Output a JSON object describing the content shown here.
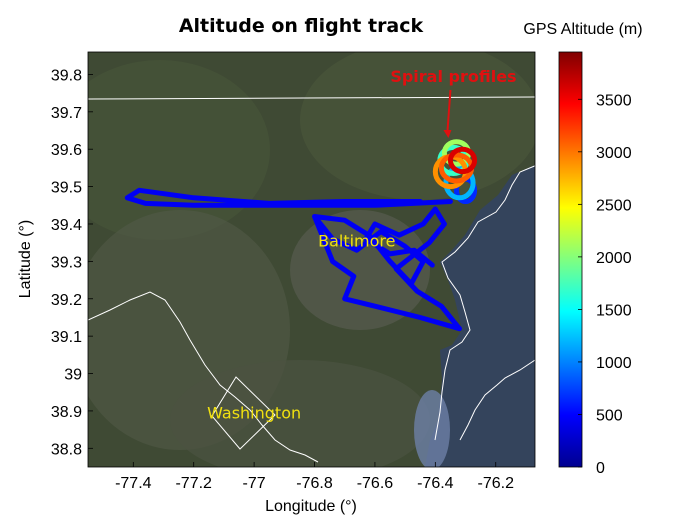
{
  "chart_data": {
    "type": "map-scatter",
    "title": "Altitude on flight track",
    "xlabel": "Longitude (°)",
    "ylabel": "Latitude (°)",
    "xlim": [
      -77.55,
      -76.07
    ],
    "ylim": [
      38.75,
      39.86
    ],
    "xticks": [
      -77.4,
      -77.2,
      -77,
      -76.8,
      -76.6,
      -76.4,
      -76.2
    ],
    "xtick_labels": [
      "-77.4",
      "-77.2",
      "-77",
      "-76.8",
      "-76.6",
      "-76.4",
      "-76.2"
    ],
    "yticks": [
      38.8,
      38.9,
      39,
      39.1,
      39.2,
      39.3,
      39.4,
      39.5,
      39.6,
      39.7,
      39.8
    ],
    "ytick_labels": [
      "38.8",
      "38.9",
      "39",
      "39.1",
      "39.2",
      "39.3",
      "39.4",
      "39.5",
      "39.6",
      "39.7",
      "39.8"
    ],
    "colorbar": {
      "title": "GPS Altitude (m)",
      "range": [
        0,
        3950
      ],
      "ticks": [
        0,
        500,
        1000,
        1500,
        2000,
        2500,
        3000,
        3500
      ],
      "tick_labels": [
        "0",
        "500",
        "1000",
        "1500",
        "2000",
        "2500",
        "3000",
        "3500"
      ],
      "colormap": "jet"
    },
    "annotations": [
      {
        "text": "Spiral profiles",
        "lon": -76.34,
        "lat": 39.78,
        "color": "#e01010",
        "arrow_to": {
          "lon": -76.36,
          "lat": 39.63
        }
      },
      {
        "text": "Baltimore",
        "lon": -76.66,
        "lat": 39.34,
        "color": "#f0e010"
      },
      {
        "text": "Washington",
        "lon": -77.0,
        "lat": 38.88,
        "color": "#f0e010"
      }
    ],
    "series": [
      {
        "altitude_m": 450,
        "points": [
          [
            -76.35,
            39.46
          ],
          [
            -76.6,
            39.45
          ],
          [
            -76.9,
            39.45
          ],
          [
            -77.2,
            39.45
          ],
          [
            -77.36,
            39.455
          ],
          [
            -77.42,
            39.47
          ],
          [
            -77.38,
            39.49
          ],
          [
            -77.2,
            39.47
          ],
          [
            -76.95,
            39.455
          ],
          [
            -76.7,
            39.46
          ],
          [
            -76.45,
            39.46
          ]
        ]
      },
      {
        "altitude_m": 450,
        "points": [
          [
            -76.8,
            39.42
          ],
          [
            -76.74,
            39.36
          ],
          [
            -76.66,
            39.33
          ],
          [
            -76.58,
            39.38
          ],
          [
            -76.5,
            39.34
          ],
          [
            -76.44,
            39.3
          ],
          [
            -76.48,
            39.24
          ],
          [
            -76.55,
            39.3
          ],
          [
            -76.62,
            39.37
          ],
          [
            -76.7,
            39.41
          ],
          [
            -76.8,
            39.42
          ],
          [
            -76.74,
            39.3
          ],
          [
            -76.67,
            39.26
          ],
          [
            -76.7,
            39.2
          ],
          [
            -76.6,
            39.18
          ],
          [
            -76.45,
            39.15
          ],
          [
            -76.32,
            39.12
          ],
          [
            -76.38,
            39.18
          ],
          [
            -76.46,
            39.22
          ],
          [
            -76.53,
            39.28
          ],
          [
            -76.42,
            39.35
          ],
          [
            -76.37,
            39.4
          ],
          [
            -76.4,
            39.44
          ],
          [
            -76.44,
            39.4
          ],
          [
            -76.52,
            39.37
          ],
          [
            -76.6,
            39.4
          ],
          [
            -76.63,
            39.36
          ],
          [
            -76.55,
            39.32
          ],
          [
            -76.47,
            39.33
          ],
          [
            -76.41,
            39.29
          ]
        ]
      },
      {
        "altitude_m": 650,
        "circle": {
          "lon": -76.3,
          "lat": 39.49,
          "rlon": 0.03,
          "rlat": 0.03
        }
      },
      {
        "altitude_m": 1200,
        "circle": {
          "lon": -76.32,
          "lat": 39.51,
          "rlon": 0.045,
          "rlat": 0.04
        }
      },
      {
        "altitude_m": 1700,
        "circle": {
          "lon": -76.34,
          "lat": 39.57,
          "rlon": 0.045,
          "rlat": 0.035
        }
      },
      {
        "altitude_m": 2100,
        "circle": {
          "lon": -76.33,
          "lat": 39.59,
          "rlon": 0.04,
          "rlat": 0.03
        }
      },
      {
        "altitude_m": 2900,
        "circle": {
          "lon": -76.35,
          "lat": 39.54,
          "rlon": 0.05,
          "rlat": 0.04
        }
      },
      {
        "altitude_m": 3100,
        "circle": {
          "lon": -76.33,
          "lat": 39.55,
          "rlon": 0.05,
          "rlat": 0.035
        }
      },
      {
        "altitude_m": 3600,
        "circle": {
          "lon": -76.31,
          "lat": 39.57,
          "rlon": 0.04,
          "rlat": 0.03
        }
      }
    ]
  }
}
